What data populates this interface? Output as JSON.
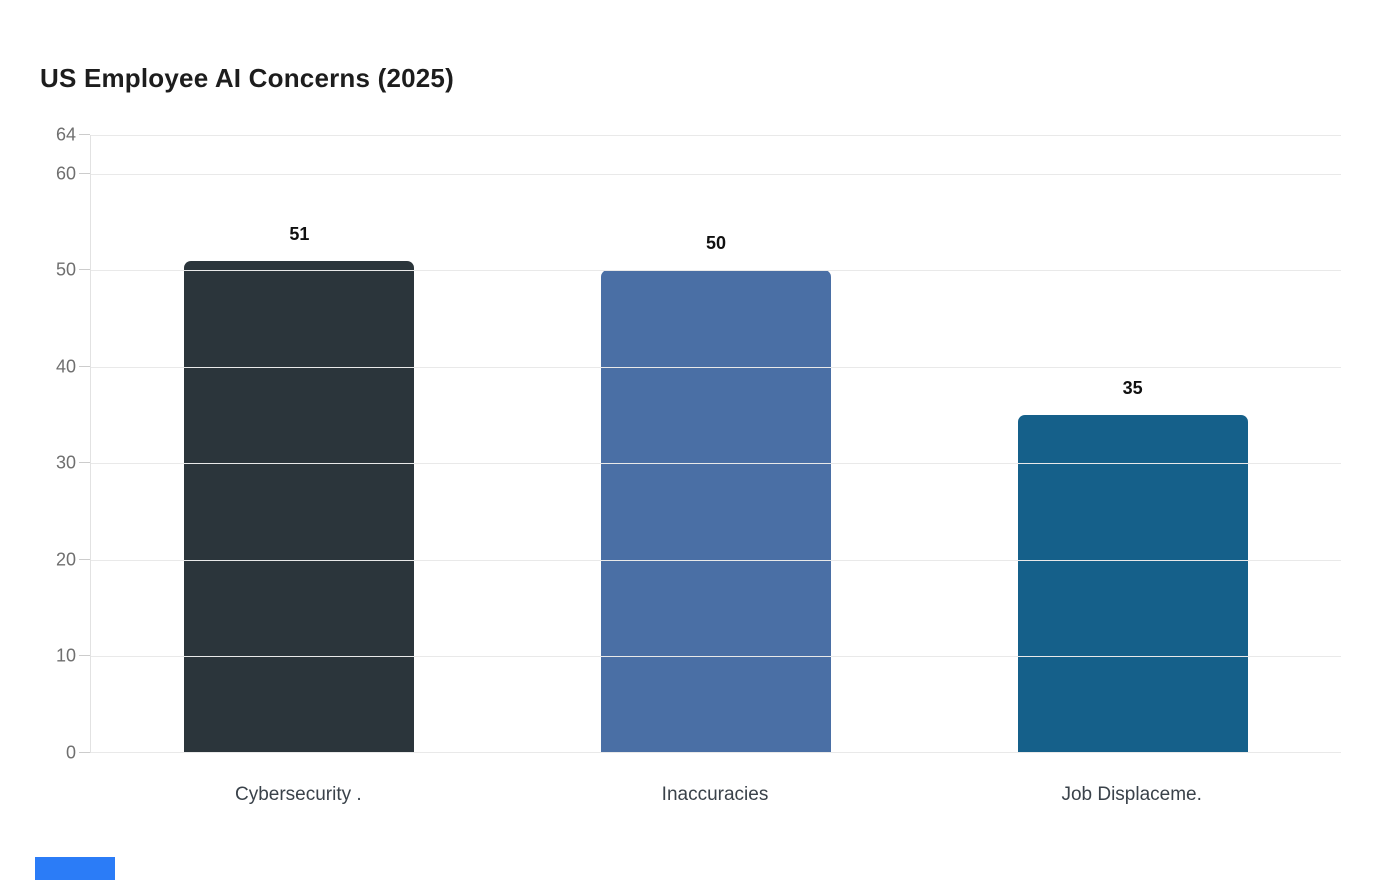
{
  "chart_data": {
    "type": "bar",
    "title": "US Employee AI Concerns (2025)",
    "categories": [
      "Cybersecurity .",
      "Inaccuracies",
      "Job Displaceme."
    ],
    "values": [
      51,
      50,
      35
    ],
    "value_labels": [
      "51",
      "50",
      "35"
    ],
    "bar_colors": [
      "#2b353b",
      "#4a6fa5",
      "#15608a"
    ],
    "yticks": [
      0,
      10,
      20,
      30,
      40,
      50,
      60,
      64
    ],
    "ylim": [
      0,
      64
    ],
    "xlabel": "",
    "ylabel": "",
    "grid": "horizontal",
    "legend": "none"
  },
  "colors": {
    "grid_line": "#e9e9e9",
    "tick_text": "#6f6f6f",
    "title_text": "#1d1d1d",
    "value_text": "#101010",
    "category_text": "#3a424a",
    "bottom_accent": "#2b7cf7"
  }
}
